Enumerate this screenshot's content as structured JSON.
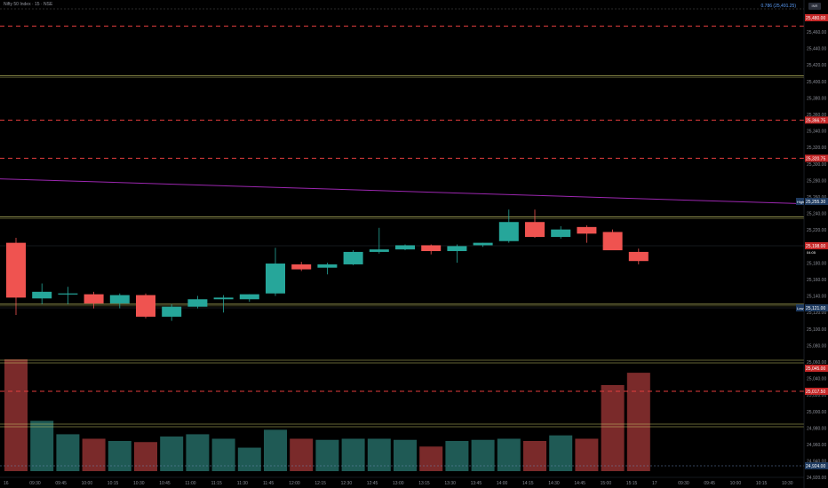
{
  "header": {
    "symbol_label": "Nifty 50 Index · 15 · NSE",
    "fib_label": "0.786 (25,491.25)",
    "badge": "INR"
  },
  "colors": {
    "up": "#26a69a",
    "down": "#ef5350",
    "resistance_dash": "#e23d3d",
    "support_line": "#c8c86a",
    "trendline": "#9c27b0",
    "vol_up": "#1f5a55",
    "vol_down": "#7a2a2a"
  },
  "axis": {
    "price_labels": [
      "25,460.00",
      "25,440.00",
      "25,420.00",
      "25,400.00",
      "25,380.00",
      "25,360.00",
      "25,340.00",
      "25,320.00",
      "25,300.00",
      "25,280.00",
      "25,260.00",
      "25,240.00",
      "25,220.00",
      "25,200.00",
      "25,180.00",
      "25,160.00",
      "25,140.00",
      "25,120.00",
      "25,100.00",
      "25,080.00",
      "25,060.00",
      "25,040.00",
      "25,020.00",
      "25,000.00",
      "24,980.00",
      "24,960.00",
      "24,940.00",
      "24,920.00"
    ],
    "time_labels": [
      "16",
      "09:30",
      "09:45",
      "10:00",
      "10:15",
      "10:30",
      "10:45",
      "11:00",
      "11:15",
      "11:30",
      "11:45",
      "12:00",
      "12:15",
      "12:30",
      "12:45",
      "13:00",
      "13:15",
      "13:30",
      "13:45",
      "14:00",
      "14:15",
      "14:30",
      "14:45",
      "15:00",
      "15:15",
      "17",
      "09:30",
      "09:45",
      "10:00",
      "10:15",
      "10:30"
    ]
  },
  "markers": {
    "r1": "25,480.00",
    "r2": "25,366.75",
    "r3": "25,320.75",
    "high": "25,255.30",
    "last": "25,198.00",
    "last_time": "04:05",
    "low": "25,121.00",
    "v1": "25,045.00",
    "v2": "25,017.50",
    "v3": "24,924.00"
  },
  "chart_data": {
    "type": "candlestick",
    "title": "Nifty 50 Index · 15 · NSE",
    "times": [
      "09:15",
      "09:30",
      "09:45",
      "10:00",
      "10:15",
      "10:30",
      "10:45",
      "11:00",
      "11:15",
      "11:30",
      "11:45",
      "12:00",
      "12:15",
      "12:30",
      "12:45",
      "13:00",
      "13:15",
      "13:30",
      "13:45",
      "14:00",
      "14:15",
      "14:30",
      "14:45",
      "15:00",
      "15:15"
    ],
    "candles": [
      {
        "o": 25219,
        "h": 25225,
        "l": 25132,
        "c": 25153
      },
      {
        "o": 25152,
        "h": 25170,
        "l": 25145,
        "c": 25160
      },
      {
        "o": 25158,
        "h": 25166,
        "l": 25145,
        "c": 25158
      },
      {
        "o": 25157,
        "h": 25160,
        "l": 25140,
        "c": 25146
      },
      {
        "o": 25146,
        "h": 25158,
        "l": 25140,
        "c": 25156
      },
      {
        "o": 25156,
        "h": 25158,
        "l": 25128,
        "c": 25130
      },
      {
        "o": 25130,
        "h": 25145,
        "l": 25125,
        "c": 25142
      },
      {
        "o": 25142,
        "h": 25155,
        "l": 25140,
        "c": 25151
      },
      {
        "o": 25151,
        "h": 25156,
        "l": 25135,
        "c": 25153
      },
      {
        "o": 25151,
        "h": 25157,
        "l": 25148,
        "c": 25157
      },
      {
        "o": 25158,
        "h": 25213,
        "l": 25155,
        "c": 25194
      },
      {
        "o": 25193,
        "h": 25196,
        "l": 25185,
        "c": 25187
      },
      {
        "o": 25189,
        "h": 25195,
        "l": 25181,
        "c": 25193
      },
      {
        "o": 25193,
        "h": 25210,
        "l": 25192,
        "c": 25208
      },
      {
        "o": 25208,
        "h": 25237,
        "l": 25206,
        "c": 25211
      },
      {
        "o": 25211,
        "h": 25217,
        "l": 25210,
        "c": 25216
      },
      {
        "o": 25216,
        "h": 25217,
        "l": 25205,
        "c": 25209
      },
      {
        "o": 25209,
        "h": 25217,
        "l": 25195,
        "c": 25215
      },
      {
        "o": 25216,
        "h": 25219,
        "l": 25214,
        "c": 25219
      },
      {
        "o": 25221,
        "h": 25259,
        "l": 25219,
        "c": 25244
      },
      {
        "o": 25244,
        "h": 25259,
        "l": 25225,
        "c": 25226
      },
      {
        "o": 25226,
        "h": 25239,
        "l": 25224,
        "c": 25235
      },
      {
        "o": 25238,
        "h": 25240,
        "l": 25219,
        "c": 25230
      },
      {
        "o": 25232,
        "h": 25235,
        "l": 25210,
        "c": 25210
      },
      {
        "o": 25208,
        "h": 25212,
        "l": 25193,
        "c": 25197
      }
    ],
    "volume_relative": [
      1.0,
      0.45,
      0.33,
      0.29,
      0.27,
      0.26,
      0.31,
      0.33,
      0.29,
      0.21,
      0.37,
      0.29,
      0.28,
      0.29,
      0.29,
      0.28,
      0.22,
      0.27,
      0.28,
      0.29,
      0.27,
      0.32,
      0.29,
      0.77,
      0.88
    ],
    "trendline": [
      25296,
      25266
    ],
    "resistance_levels": [
      25480,
      25366.75,
      25320.75
    ],
    "support_levels": [
      25420,
      25250,
      25145
    ],
    "yrange": [
      25100,
      25490
    ],
    "grid": false
  }
}
